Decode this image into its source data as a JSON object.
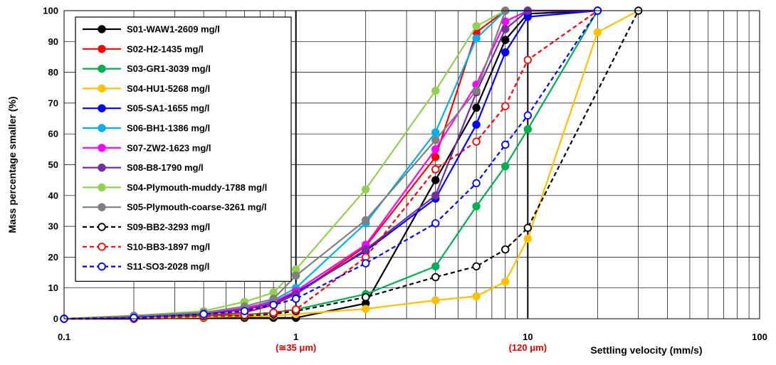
{
  "chart_data": {
    "type": "line",
    "xscale": "log",
    "xlim": [
      0.1,
      100
    ],
    "ylim": [
      0,
      100
    ],
    "xlabel": "Settling velocity (mm/s)",
    "ylabel": "Mass percentage smaller (%)",
    "x_ticks": [
      "0.1",
      "1",
      "10",
      "100"
    ],
    "y_ticks": [
      "0",
      "10",
      "20",
      "30",
      "40",
      "50",
      "60",
      "70",
      "80",
      "90",
      "100"
    ],
    "annotations": [
      {
        "text": "(≅35 μm)",
        "x": 1,
        "color": "#e00000"
      },
      {
        "text": "(120 μm)",
        "x": 10,
        "color": "#e00000"
      }
    ],
    "grid": true,
    "legend_position": "top-left",
    "series": [
      {
        "name": "S01-WAW1-2609 mg/l",
        "color": "#000000",
        "dashed": false,
        "hollow": false,
        "points": [
          [
            0.1,
            0
          ],
          [
            0.2,
            0
          ],
          [
            0.4,
            0.3
          ],
          [
            0.6,
            0.3
          ],
          [
            0.8,
            0.3
          ],
          [
            1,
            0.3
          ],
          [
            2,
            5
          ],
          [
            4,
            45
          ],
          [
            6,
            68.5
          ],
          [
            8,
            90.5
          ],
          [
            10,
            99
          ],
          [
            20,
            100
          ]
        ]
      },
      {
        "name": "S02-H2-1435 mg/l",
        "color": "#ff0000",
        "dashed": false,
        "hollow": false,
        "points": [
          [
            0.1,
            0
          ],
          [
            0.2,
            0.3
          ],
          [
            0.4,
            1
          ],
          [
            0.6,
            2
          ],
          [
            0.8,
            4.5
          ],
          [
            1,
            8
          ],
          [
            2,
            23.5
          ],
          [
            4,
            52.5
          ],
          [
            6,
            93
          ],
          [
            8,
            100
          ],
          [
            10,
            100
          ],
          [
            20,
            100
          ]
        ]
      },
      {
        "name": "S03-GR1-3039 mg/l",
        "color": "#00b050",
        "dashed": false,
        "hollow": false,
        "points": [
          [
            0.1,
            0
          ],
          [
            0.2,
            0.3
          ],
          [
            0.4,
            0.8
          ],
          [
            0.6,
            1.3
          ],
          [
            0.8,
            2
          ],
          [
            1,
            3
          ],
          [
            2,
            8
          ],
          [
            4,
            17
          ],
          [
            6,
            36.5
          ],
          [
            8,
            49.5
          ],
          [
            10,
            61.5
          ],
          [
            20,
            100
          ]
        ]
      },
      {
        "name": "S04-HU1-5268 mg/l",
        "color": "#ffc000",
        "dashed": false,
        "hollow": false,
        "points": [
          [
            0.1,
            0
          ],
          [
            0.2,
            0.2
          ],
          [
            0.4,
            0.5
          ],
          [
            0.6,
            0.8
          ],
          [
            0.8,
            1
          ],
          [
            1,
            1.5
          ],
          [
            2,
            3.2
          ],
          [
            4,
            6
          ],
          [
            6,
            7.3
          ],
          [
            8,
            12
          ],
          [
            10,
            26
          ],
          [
            20,
            93
          ],
          [
            30,
            100
          ]
        ]
      },
      {
        "name": "S05-SA1-1655 mg/l",
        "color": "#0000ff",
        "dashed": false,
        "hollow": false,
        "points": [
          [
            0.1,
            0
          ],
          [
            0.2,
            0.5
          ],
          [
            0.4,
            1.5
          ],
          [
            0.6,
            3
          ],
          [
            0.8,
            5
          ],
          [
            1,
            8.5
          ],
          [
            2,
            22
          ],
          [
            4,
            39
          ],
          [
            6,
            63
          ],
          [
            8,
            86.5
          ],
          [
            10,
            98
          ],
          [
            20,
            100
          ]
        ]
      },
      {
        "name": "S06-BH1-1386 mg/l",
        "color": "#00b0f0",
        "dashed": false,
        "hollow": false,
        "points": [
          [
            0.1,
            0
          ],
          [
            0.2,
            0.5
          ],
          [
            0.4,
            1.5
          ],
          [
            0.6,
            3
          ],
          [
            0.8,
            6
          ],
          [
            1,
            10
          ],
          [
            2,
            31
          ],
          [
            4,
            60.5
          ],
          [
            6,
            91
          ],
          [
            8,
            100
          ],
          [
            10,
            100
          ],
          [
            20,
            100
          ]
        ]
      },
      {
        "name": "S07-ZW2-1623 mg/l",
        "color": "#ff00ff",
        "dashed": false,
        "hollow": false,
        "points": [
          [
            0.1,
            0
          ],
          [
            0.2,
            0.5
          ],
          [
            0.4,
            1.5
          ],
          [
            0.6,
            3.5
          ],
          [
            0.8,
            5.5
          ],
          [
            1,
            9
          ],
          [
            2,
            24
          ],
          [
            4,
            55
          ],
          [
            6,
            76
          ],
          [
            8,
            96.5
          ],
          [
            10,
            100
          ],
          [
            20,
            100
          ]
        ]
      },
      {
        "name": "S08-B8-1790 mg/l",
        "color": "#7030a0",
        "dashed": false,
        "hollow": false,
        "points": [
          [
            0.1,
            0
          ],
          [
            0.2,
            0.5
          ],
          [
            0.4,
            1.5
          ],
          [
            0.6,
            3
          ],
          [
            0.8,
            5
          ],
          [
            1,
            8
          ],
          [
            2,
            22.5
          ],
          [
            4,
            40
          ],
          [
            6,
            73.5
          ],
          [
            8,
            94
          ],
          [
            10,
            100
          ],
          [
            20,
            100
          ]
        ]
      },
      {
        "name": "S04-Plymouth-muddy-1788 mg/l",
        "color": "#92d050",
        "dashed": false,
        "hollow": false,
        "points": [
          [
            0.1,
            0
          ],
          [
            0.2,
            1
          ],
          [
            0.4,
            2.5
          ],
          [
            0.6,
            5.5
          ],
          [
            0.8,
            8.5
          ],
          [
            1,
            16
          ],
          [
            2,
            42
          ],
          [
            4,
            74
          ],
          [
            6,
            95
          ],
          [
            8,
            100
          ]
        ]
      },
      {
        "name": "S05-Plymouth-coarse-3261 mg/l",
        "color": "#7f7f7f",
        "dashed": false,
        "hollow": false,
        "points": [
          [
            0.1,
            0
          ],
          [
            0.2,
            1
          ],
          [
            0.4,
            2
          ],
          [
            0.6,
            4
          ],
          [
            0.8,
            6.5
          ],
          [
            1,
            14
          ],
          [
            2,
            32
          ],
          [
            4,
            58
          ],
          [
            6,
            74
          ],
          [
            8,
            100
          ]
        ]
      },
      {
        "name": "S09-BB2-3293 mg/l",
        "color": "#000000",
        "dashed": true,
        "hollow": true,
        "points": [
          [
            0.1,
            0
          ],
          [
            0.2,
            0
          ],
          [
            0.4,
            0.8
          ],
          [
            0.6,
            1
          ],
          [
            0.8,
            1.5
          ],
          [
            1,
            2.5
          ],
          [
            2,
            7
          ],
          [
            4,
            13.5
          ],
          [
            6,
            17
          ],
          [
            8,
            22.5
          ],
          [
            10,
            29.5
          ],
          [
            30,
            100
          ]
        ]
      },
      {
        "name": "S10-BB3-1897 mg/l",
        "color": "#ff0000",
        "dashed": true,
        "hollow": true,
        "points": [
          [
            0.1,
            0
          ],
          [
            0.2,
            0
          ],
          [
            0.4,
            0.8
          ],
          [
            0.6,
            1.2
          ],
          [
            0.8,
            2
          ],
          [
            1,
            3
          ],
          [
            2,
            20
          ],
          [
            4,
            48.5
          ],
          [
            6,
            57.5
          ],
          [
            8,
            69
          ],
          [
            10,
            84
          ],
          [
            20,
            100
          ]
        ]
      },
      {
        "name": "S11-SO3-2028 mg/l",
        "color": "#0000ff",
        "dashed": true,
        "hollow": true,
        "points": [
          [
            0.1,
            0
          ],
          [
            0.2,
            0.3
          ],
          [
            0.4,
            1.5
          ],
          [
            0.6,
            2.5
          ],
          [
            0.8,
            4.5
          ],
          [
            1,
            6.5
          ],
          [
            2,
            18
          ],
          [
            4,
            31
          ],
          [
            6,
            44
          ],
          [
            8,
            56.5
          ],
          [
            10,
            66
          ],
          [
            20,
            100
          ]
        ]
      }
    ]
  }
}
